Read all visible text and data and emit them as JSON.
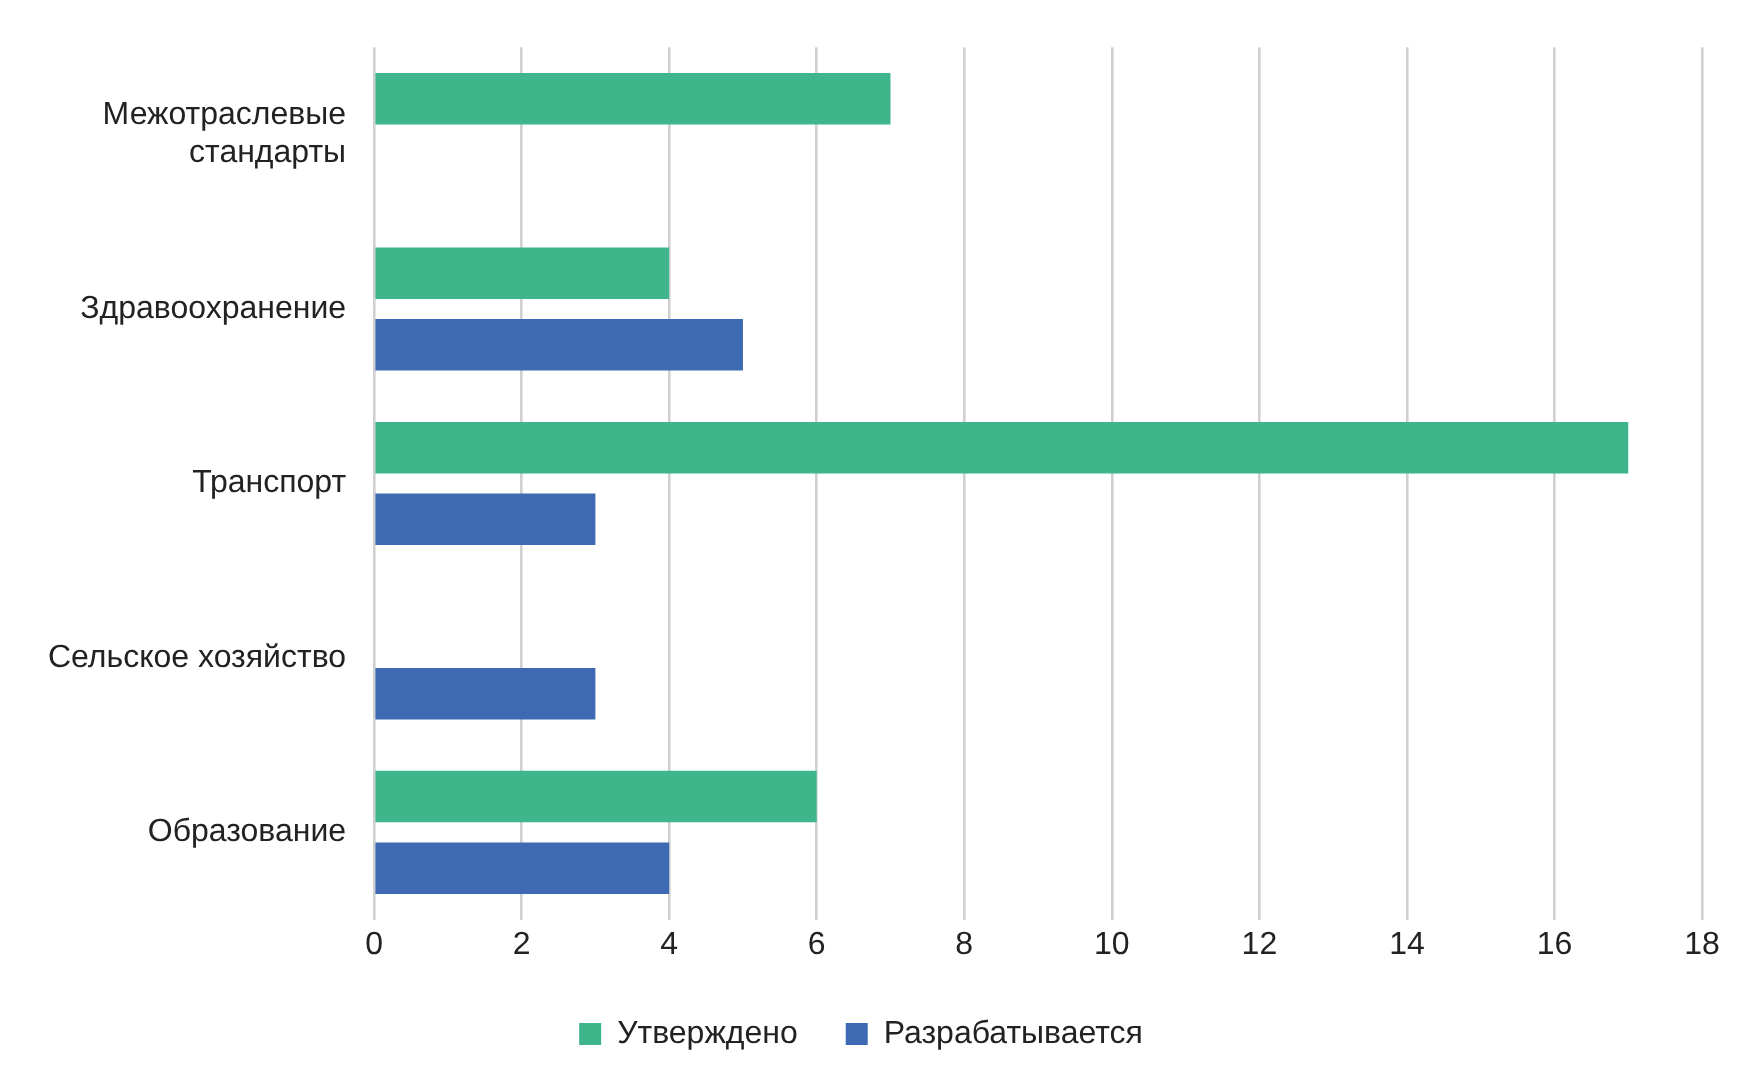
{
  "chart_data": {
    "type": "bar",
    "orientation": "horizontal",
    "categories": [
      "Межотраслевые стандарты",
      "Здравоохранение",
      "Транспорт",
      "Сельское хозяйство",
      "Образование"
    ],
    "series": [
      {
        "name": "Утверждено",
        "color": "#3eb58b",
        "values": [
          7,
          4,
          17,
          null,
          6
        ]
      },
      {
        "name": "Разрабатывается",
        "color": "#3d6ab3",
        "values": [
          null,
          5,
          3,
          3,
          4
        ]
      }
    ],
    "xlim": [
      0,
      18
    ],
    "xticks": [
      0,
      2,
      4,
      6,
      8,
      10,
      12,
      14,
      16,
      18
    ],
    "grid": "x",
    "legend": "bottom"
  }
}
